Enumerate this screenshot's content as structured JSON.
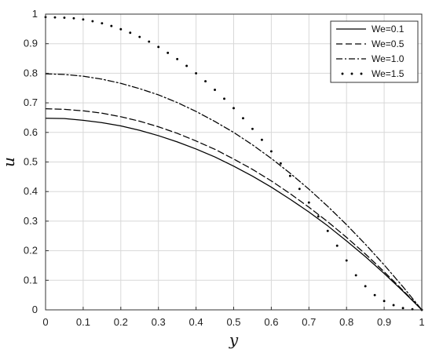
{
  "chart_data": {
    "type": "line",
    "title": "",
    "xlabel": "y",
    "ylabel": "u",
    "xlim": [
      0,
      1
    ],
    "ylim": [
      0,
      1
    ],
    "grid": true,
    "legend_position": "top-right",
    "x_ticks": [
      "0",
      "0.1",
      "0.2",
      "0.3",
      "0.4",
      "0.5",
      "0.6",
      "0.7",
      "0.8",
      "0.9",
      "1"
    ],
    "y_ticks": [
      "0",
      "0.1",
      "0.2",
      "0.3",
      "0.4",
      "0.5",
      "0.6",
      "0.7",
      "0.8",
      "0.9",
      "1"
    ],
    "series": [
      {
        "name": "We=0.1",
        "line_style": "solid",
        "x": [
          0,
          0.05,
          0.1,
          0.15,
          0.2,
          0.25,
          0.3,
          0.35,
          0.4,
          0.45,
          0.5,
          0.55,
          0.6,
          0.65,
          0.7,
          0.75,
          0.8,
          0.85,
          0.9,
          0.95,
          1.0
        ],
        "values": [
          0.648,
          0.647,
          0.641,
          0.633,
          0.622,
          0.607,
          0.589,
          0.568,
          0.544,
          0.517,
          0.486,
          0.452,
          0.415,
          0.374,
          0.331,
          0.284,
          0.233,
          0.18,
          0.123,
          0.063,
          0.0
        ]
      },
      {
        "name": "We=0.5",
        "line_style": "dashed",
        "x": [
          0,
          0.05,
          0.1,
          0.15,
          0.2,
          0.25,
          0.3,
          0.35,
          0.4,
          0.45,
          0.5,
          0.55,
          0.6,
          0.65,
          0.7,
          0.75,
          0.8,
          0.85,
          0.9,
          0.95,
          1.0
        ],
        "values": [
          0.68,
          0.678,
          0.673,
          0.665,
          0.653,
          0.638,
          0.619,
          0.597,
          0.571,
          0.543,
          0.51,
          0.475,
          0.436,
          0.393,
          0.347,
          0.298,
          0.245,
          0.189,
          0.129,
          0.066,
          0.0
        ]
      },
      {
        "name": "We=1.0",
        "line_style": "dash-dot",
        "x": [
          0,
          0.05,
          0.1,
          0.15,
          0.2,
          0.25,
          0.3,
          0.35,
          0.4,
          0.45,
          0.5,
          0.55,
          0.6,
          0.65,
          0.7,
          0.75,
          0.8,
          0.85,
          0.9,
          0.95,
          1.0
        ],
        "values": [
          0.798,
          0.796,
          0.79,
          0.78,
          0.766,
          0.748,
          0.727,
          0.701,
          0.671,
          0.637,
          0.6,
          0.558,
          0.512,
          0.462,
          0.408,
          0.35,
          0.288,
          0.222,
          0.152,
          0.078,
          0.0
        ]
      },
      {
        "name": "We=1.5",
        "line_style": "dotted",
        "x": [
          0,
          0.025,
          0.05,
          0.075,
          0.1,
          0.125,
          0.15,
          0.175,
          0.2,
          0.225,
          0.25,
          0.275,
          0.3,
          0.325,
          0.35,
          0.375,
          0.4,
          0.425,
          0.45,
          0.475,
          0.5,
          0.525,
          0.55,
          0.575,
          0.6,
          0.625,
          0.65,
          0.675,
          0.7,
          0.725,
          0.75,
          0.775,
          0.8,
          0.825,
          0.85,
          0.875,
          0.9,
          0.925,
          0.95,
          0.975,
          1.0
        ],
        "values": [
          0.99,
          0.989,
          0.988,
          0.986,
          0.982,
          0.976,
          0.969,
          0.96,
          0.949,
          0.937,
          0.923,
          0.907,
          0.889,
          0.869,
          0.848,
          0.825,
          0.8,
          0.773,
          0.744,
          0.714,
          0.682,
          0.648,
          0.612,
          0.575,
          0.536,
          0.495,
          0.453,
          0.409,
          0.363,
          0.316,
          0.267,
          0.217,
          0.167,
          0.117,
          0.08,
          0.05,
          0.03,
          0.016,
          0.006,
          0.002,
          0.0
        ]
      }
    ],
    "colors": {
      "series": "#000000",
      "grid": "#d8d8d8",
      "axes": "#333333"
    }
  }
}
